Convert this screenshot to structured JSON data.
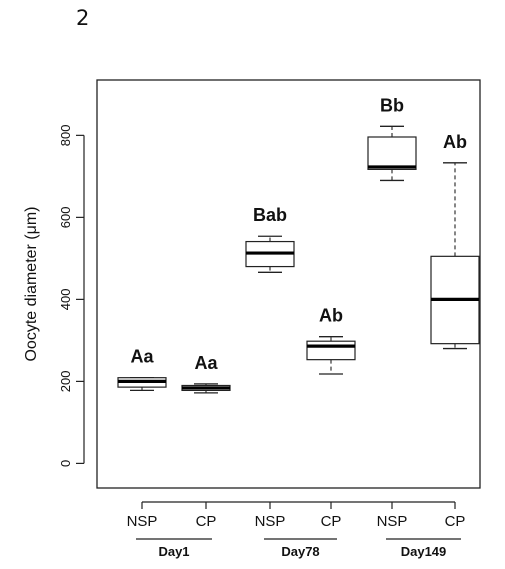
{
  "panel_label": "2",
  "chart_data": {
    "type": "box",
    "ylabel": "Oocyte diameter (μm)",
    "ylim": [
      -60,
      935
    ],
    "yticks": [
      0,
      200,
      400,
      600,
      800
    ],
    "grid": false,
    "groups": [
      {
        "label": "Day1",
        "categories": [
          "NSP",
          "CP"
        ]
      },
      {
        "label": "Day78",
        "categories": [
          "NSP",
          "CP"
        ]
      },
      {
        "label": "Day149",
        "categories": [
          "NSP",
          "CP"
        ]
      }
    ],
    "boxes": [
      {
        "group": "Day1",
        "category": "NSP",
        "min": 178,
        "q1": 186,
        "median": 200,
        "q3": 209,
        "max": 209,
        "letter": "Aa"
      },
      {
        "group": "Day1",
        "category": "CP",
        "min": 172,
        "q1": 178,
        "median": 184,
        "q3": 190,
        "max": 194,
        "letter": "Aa"
      },
      {
        "group": "Day78",
        "category": "NSP",
        "min": 466,
        "q1": 480,
        "median": 513,
        "q3": 541,
        "max": 554,
        "letter": "Bab"
      },
      {
        "group": "Day78",
        "category": "CP",
        "min": 218,
        "q1": 253,
        "median": 286,
        "q3": 298,
        "max": 309,
        "letter": "Ab"
      },
      {
        "group": "Day149",
        "category": "NSP",
        "min": 690,
        "q1": 717,
        "median": 723,
        "q3": 796,
        "max": 822,
        "letter": "Bb"
      },
      {
        "group": "Day149",
        "category": "CP",
        "min": 280,
        "q1": 292,
        "median": 400,
        "q3": 505,
        "max": 733,
        "letter": "Ab"
      }
    ]
  }
}
